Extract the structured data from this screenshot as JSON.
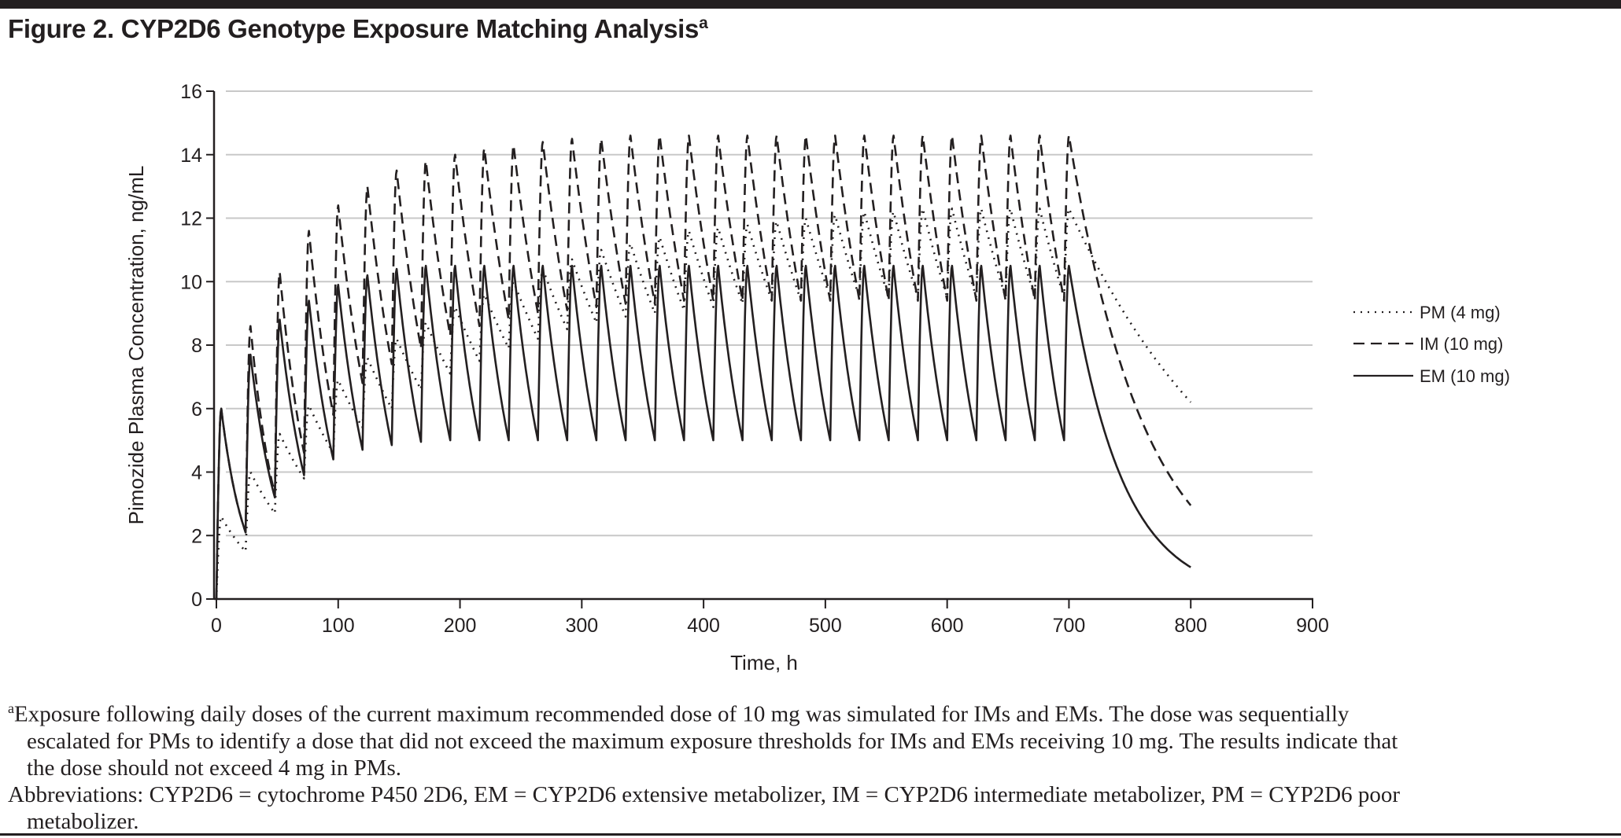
{
  "figure": {
    "title": "Figure 2. CYP2D6 Genotype Exposure Matching Analysis",
    "title_superscript": "a"
  },
  "chart_data": {
    "type": "line",
    "title": "Figure 2. CYP2D6 Genotype Exposure Matching Analysis",
    "xlabel": "Time, h",
    "ylabel": "Pimozide Plasma Concentration, ng/mL",
    "xlim": [
      0,
      900
    ],
    "ylim": [
      0,
      16
    ],
    "x_ticks": [
      "0",
      "100",
      "200",
      "300",
      "400",
      "500",
      "600",
      "700",
      "800",
      "900"
    ],
    "y_ticks": [
      "0",
      "2",
      "4",
      "6",
      "8",
      "10",
      "12",
      "14",
      "16"
    ],
    "grid": "horizontal",
    "legend_position": "right",
    "dosing_interval_h": 24,
    "dose_times_h": [
      0,
      24,
      48,
      72,
      96,
      120,
      144,
      168,
      192,
      216,
      240,
      264,
      288,
      312,
      336,
      360,
      384,
      408,
      432,
      456,
      480,
      504,
      528,
      552,
      576,
      600,
      624,
      648,
      672,
      696
    ],
    "series": [
      {
        "name": "PM (4 mg)",
        "style": "dotted",
        "peaks": [
          2.6,
          4.0,
          5.2,
          6.1,
          6.9,
          7.6,
          8.2,
          8.7,
          9.2,
          9.6,
          10.0,
          10.4,
          10.7,
          11.0,
          11.2,
          11.4,
          11.6,
          11.7,
          11.8,
          11.9,
          12.0,
          12.1,
          12.2,
          12.2,
          12.3,
          12.3,
          12.3,
          12.3,
          12.3,
          12.3
        ],
        "troughs": [
          1.5,
          2.7,
          3.8,
          4.6,
          5.4,
          6.0,
          6.6,
          7.1,
          7.5,
          7.9,
          8.2,
          8.5,
          8.7,
          8.9,
          9.0,
          9.1,
          9.2,
          9.3,
          9.4,
          9.4,
          9.5,
          9.5,
          9.5,
          9.5,
          9.5,
          9.5,
          9.5,
          9.5,
          9.5,
          9.5
        ],
        "end_value_800h": 6.2
      },
      {
        "name": "IM (10 mg)",
        "style": "dashed",
        "peaks": [
          6.0,
          8.6,
          10.3,
          11.6,
          12.4,
          13.0,
          13.5,
          13.8,
          14.0,
          14.2,
          14.3,
          14.4,
          14.5,
          14.5,
          14.6,
          14.6,
          14.6,
          14.6,
          14.6,
          14.6,
          14.6,
          14.6,
          14.6,
          14.6,
          14.6,
          14.6,
          14.6,
          14.6,
          14.6,
          14.6
        ],
        "troughs": [
          2.1,
          3.3,
          4.6,
          5.8,
          6.8,
          7.4,
          7.9,
          8.3,
          8.6,
          8.8,
          9.0,
          9.1,
          9.2,
          9.3,
          9.3,
          9.4,
          9.4,
          9.4,
          9.4,
          9.4,
          9.4,
          9.4,
          9.4,
          9.4,
          9.4,
          9.4,
          9.4,
          9.4,
          9.4,
          9.4
        ],
        "end_value_800h": 2.95
      },
      {
        "name": "EM (10 mg)",
        "style": "solid",
        "peaks": [
          6.0,
          7.7,
          8.8,
          9.4,
          9.9,
          10.2,
          10.4,
          10.5,
          10.5,
          10.5,
          10.5,
          10.5,
          10.5,
          10.5,
          10.5,
          10.5,
          10.5,
          10.5,
          10.5,
          10.5,
          10.5,
          10.5,
          10.5,
          10.5,
          10.5,
          10.5,
          10.5,
          10.5,
          10.5,
          10.5
        ],
        "troughs": [
          2.1,
          3.2,
          3.9,
          4.4,
          4.7,
          4.85,
          4.95,
          5.0,
          5.0,
          5.0,
          5.0,
          5.0,
          5.0,
          5.0,
          5.0,
          5.0,
          5.0,
          5.0,
          5.0,
          5.0,
          5.0,
          5.0,
          5.0,
          5.0,
          5.0,
          5.0,
          5.0,
          5.0,
          5.0,
          5.0
        ],
        "end_value_800h": 1.0
      }
    ]
  },
  "legend": [
    {
      "label": "PM (4 mg)",
      "style": "dotted"
    },
    {
      "label": "IM (10 mg)",
      "style": "dashed"
    },
    {
      "label": "EM (10 mg)",
      "style": "solid"
    }
  ],
  "footnotes": {
    "marker": "a",
    "note_line1": "Exposure following daily doses of the current maximum recommended dose of 10 mg was simulated for IMs and EMs. The dose was sequentially",
    "note_line2": "escalated for PMs to identify a dose that did not exceed the maximum exposure thresholds for IMs and EMs receiving 10 mg. The results indicate that",
    "note_line3": "the dose should not exceed 4 mg in PMs.",
    "abbrev_line1": "Abbreviations: CYP2D6 = cytochrome P450 2D6, EM = CYP2D6 extensive metabolizer, IM = CYP2D6 intermediate metabolizer, PM = CYP2D6 poor",
    "abbrev_line2": "metabolizer."
  },
  "colors": {
    "ink": "#231f20",
    "grid": "#c8c8c8"
  }
}
